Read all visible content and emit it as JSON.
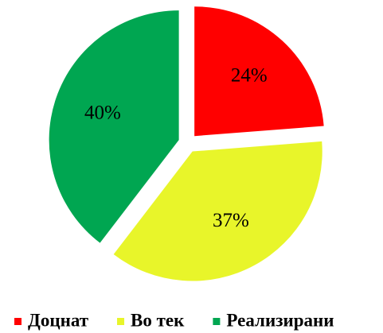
{
  "chart_data": {
    "type": "pie",
    "categories": [
      "Доцнат",
      "Во тек",
      "Реализирани"
    ],
    "values": [
      24,
      37,
      40
    ],
    "value_labels": [
      "24%",
      "37%",
      "40%"
    ],
    "colors": [
      "#ff0000",
      "#e8f52a",
      "#00a651"
    ],
    "legend": "bottom"
  }
}
